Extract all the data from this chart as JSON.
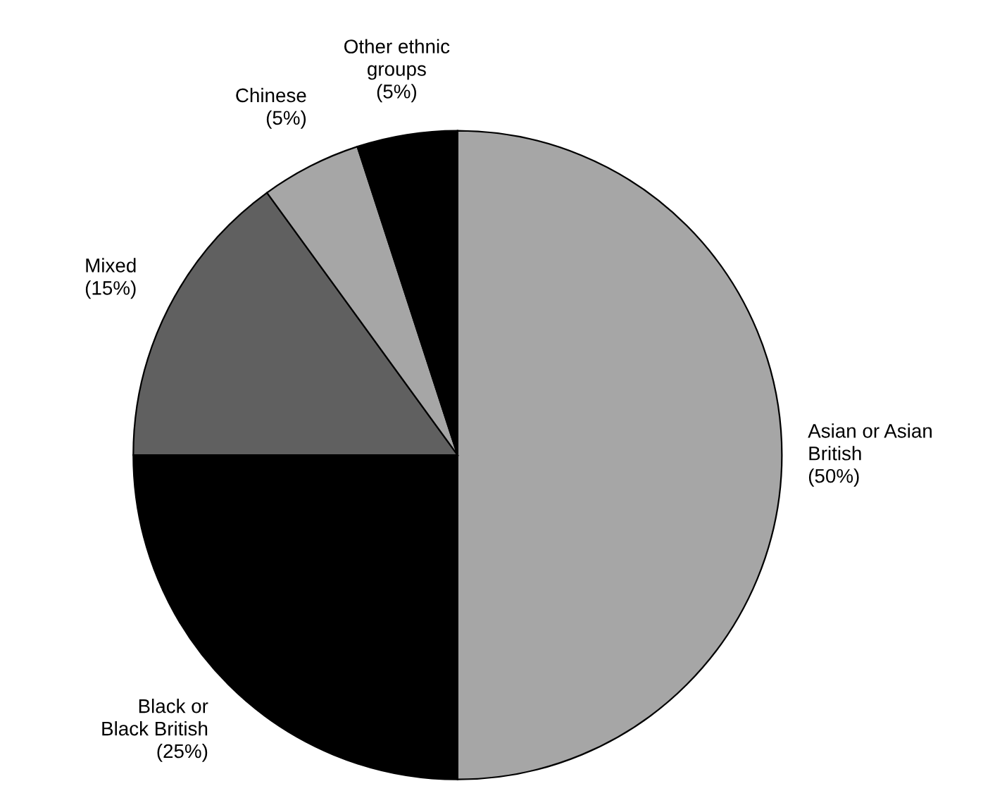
{
  "chart_data": {
    "type": "pie",
    "categories": [
      "Asian or Asian\nBritish",
      "Black or\nBlack British",
      "Mixed",
      "Chinese",
      "Other ethnic\ngroups"
    ],
    "values": [
      50,
      25,
      15,
      5,
      5
    ],
    "value_labels": [
      "(50%)",
      "(25%)",
      "(15%)",
      "(5%)",
      "(5%)"
    ],
    "colors": [
      "#a6a6a6",
      "#000000",
      "#606060",
      "#a6a6a6",
      "#000000"
    ]
  }
}
